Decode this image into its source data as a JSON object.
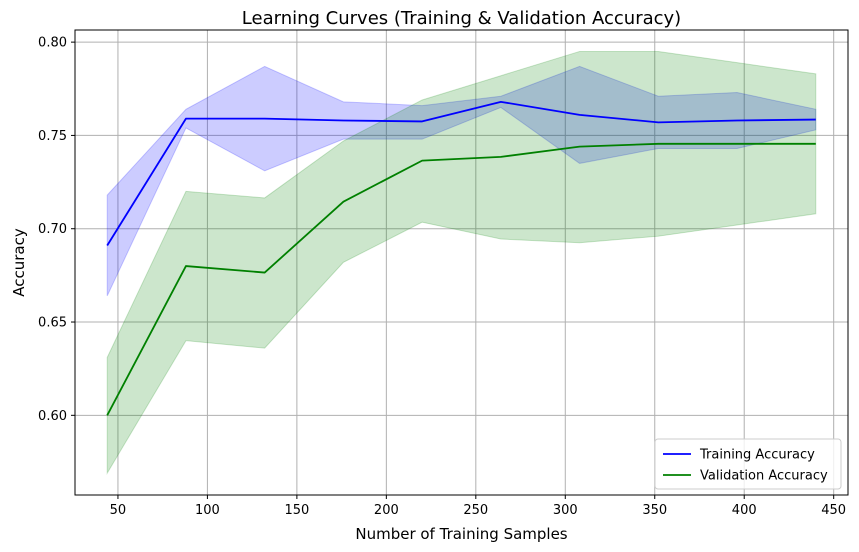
{
  "chart_data": {
    "type": "line",
    "title": "Learning Curves (Training & Validation Accuracy)",
    "xlabel": "Number of Training Samples",
    "ylabel": "Accuracy",
    "xlim": [
      26,
      458
    ],
    "ylim": [
      0.5573,
      0.8065
    ],
    "xticks": [
      50,
      100,
      150,
      200,
      250,
      300,
      350,
      400,
      450
    ],
    "yticks": [
      0.6,
      0.65,
      0.7,
      0.75,
      0.8
    ],
    "ytick_labels": [
      "0.60",
      "0.65",
      "0.70",
      "0.75",
      "0.80"
    ],
    "grid": true,
    "legend_position": "lower-right",
    "x": [
      44,
      88,
      132,
      176,
      220,
      264,
      308,
      352,
      396,
      440
    ],
    "series": [
      {
        "name": "Training Accuracy",
        "color": "#0000ff",
        "band_color": "#0000ff",
        "values": [
          0.691,
          0.759,
          0.759,
          0.758,
          0.7575,
          0.768,
          0.761,
          0.757,
          0.758,
          0.7585
        ],
        "upper": [
          0.718,
          0.764,
          0.787,
          0.768,
          0.766,
          0.771,
          0.787,
          0.771,
          0.773,
          0.764
        ],
        "lower": [
          0.664,
          0.754,
          0.731,
          0.748,
          0.748,
          0.765,
          0.735,
          0.743,
          0.743,
          0.753
        ]
      },
      {
        "name": "Validation Accuracy",
        "color": "#008000",
        "band_color": "#008000",
        "values": [
          0.6,
          0.68,
          0.6765,
          0.7145,
          0.7365,
          0.7385,
          0.744,
          0.7455,
          0.7455,
          0.7455
        ],
        "upper": [
          0.631,
          0.72,
          0.7165,
          0.747,
          0.769,
          0.782,
          0.795,
          0.795,
          0.789,
          0.783
        ],
        "lower": [
          0.569,
          0.64,
          0.636,
          0.682,
          0.7035,
          0.6945,
          0.6925,
          0.696,
          0.702,
          0.708
        ]
      }
    ]
  }
}
